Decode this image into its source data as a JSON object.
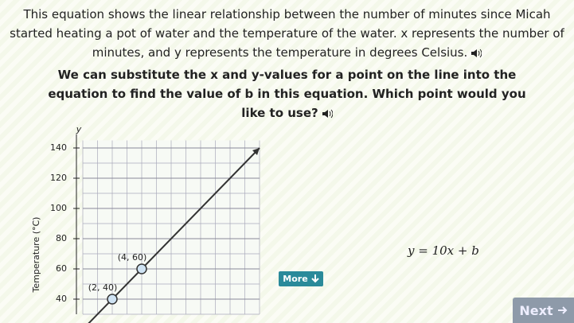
{
  "prompt": {
    "paragraph1": "This equation shows the linear relationship between the number of minutes since Micah started heating a pot of water and the temperature of the water. x represents the number of minutes, and y represents the temperature in degrees Celsius.",
    "paragraph2": "We can substitute the x and y-values for a point on the line into the equation to find the value of b in this equation. Which point would you like to use?"
  },
  "graph": {
    "y_axis_label": "y",
    "y_axis_title": "Temperature (°C)",
    "xlim": [
      0,
      12
    ],
    "ylim": [
      30,
      145
    ],
    "yticks": [
      40,
      60,
      80,
      100,
      120,
      140
    ],
    "points": [
      {
        "x": 2,
        "y": 40,
        "label": "(2, 40)"
      },
      {
        "x": 4,
        "y": 60,
        "label": "(4, 60)"
      }
    ]
  },
  "equation": "y = 10x + b",
  "buttons": {
    "more": "More",
    "next": "Next"
  }
}
